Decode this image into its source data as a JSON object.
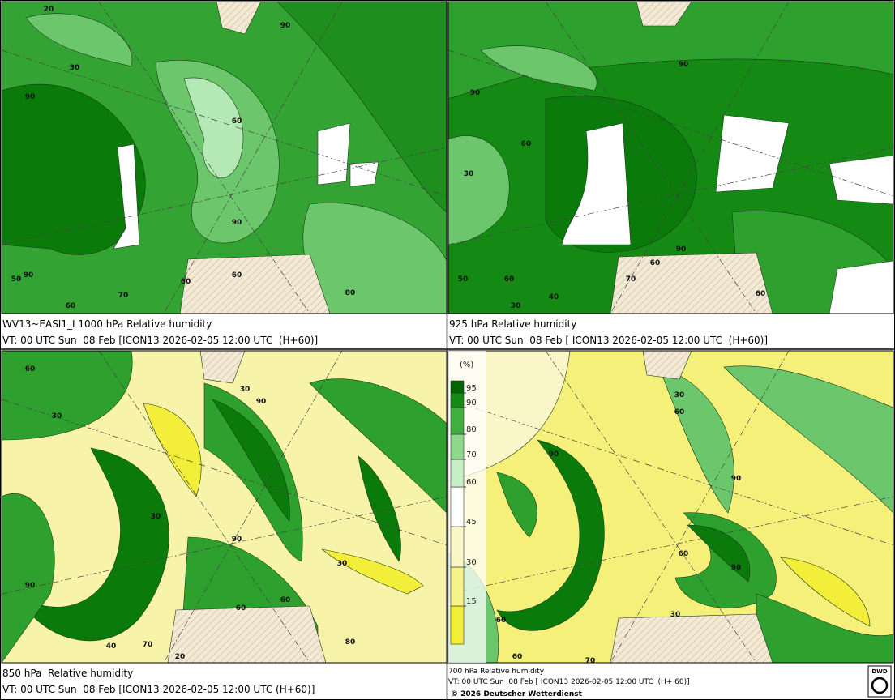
{
  "panels": [
    {
      "caption_line1": "WV13~EASI1_I 1000 hPa Relative humidity",
      "caption_line2": "VT: 00 UTC Sun  08 Feb [ICON13 2026-02-05 12:00 UTC  (H+60)]",
      "contour_labels": [
        20,
        90,
        30,
        90,
        60,
        90,
        60,
        50,
        90,
        60,
        70,
        60,
        80
      ]
    },
    {
      "caption_line1": "925 hPa Relative humidity",
      "caption_line2": "VT: 00 UTC Sun  08 Feb [ ICON13 2026-02-05 12:00 UTC  (H+60)]",
      "contour_labels": [
        60,
        90,
        90,
        60,
        30,
        90,
        60,
        50,
        30,
        40,
        60,
        70
      ]
    },
    {
      "caption_line1": "850 hPa  Relative humidity",
      "caption_line2": "VT: 00 UTC Sun  08 Feb [ICON13 2026-02-05 12:00 UTC (H+60)]",
      "contour_labels": [
        60,
        30,
        90,
        30,
        30,
        90,
        30,
        90,
        60,
        60,
        40,
        70,
        20,
        80
      ]
    },
    {
      "caption_line1": "700 hPa Relative humidity",
      "caption_line2": "VT: 00 UTC Sun  08 Feb [ ICON13 2026-02-05 12:00 UTC  (H+ 60)]",
      "copyright": "© 2026 Deutscher Wetterdienst",
      "logo": "DWD",
      "contour_labels": [
        30,
        60,
        90,
        90,
        90,
        60,
        90,
        30,
        60,
        60,
        70
      ]
    }
  ],
  "legend": {
    "unit": "(%)",
    "levels": [
      15,
      30,
      45,
      60,
      70,
      80,
      90,
      95
    ],
    "colors": [
      "#f2ee3a",
      "#f6f38a",
      "#faf6c8",
      "#ffffff",
      "#c8eec8",
      "#8ed88e",
      "#3fb03f",
      "#138a13",
      "#006400"
    ]
  }
}
